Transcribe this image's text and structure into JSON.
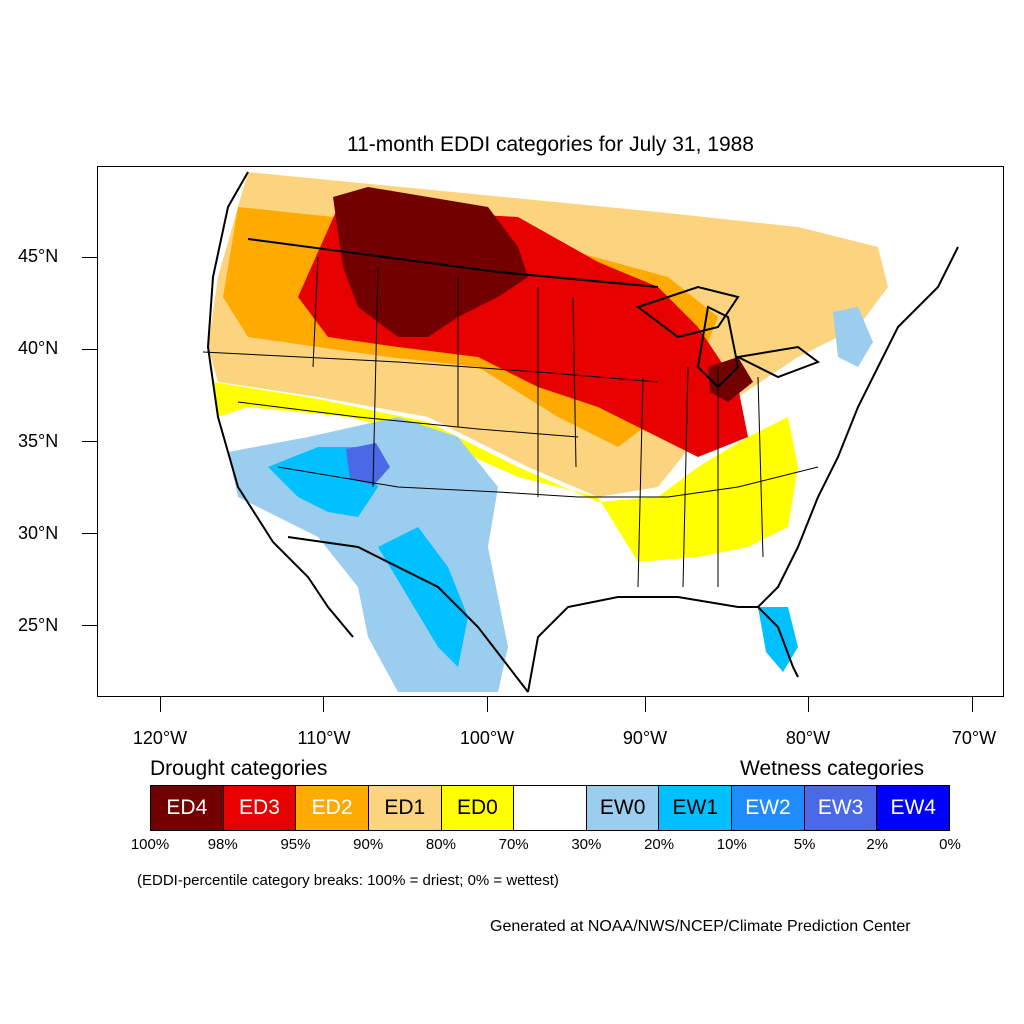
{
  "title": "11-month EDDI categories for July 31, 1988",
  "map": {
    "lat_ticks": [
      "45°N",
      "40°N",
      "35°N",
      "30°N",
      "25°N"
    ],
    "lon_ticks": [
      "120°W",
      "110°W",
      "100°W",
      "90°W",
      "80°W",
      "70°W"
    ],
    "colors": {
      "ED4": "#730000",
      "ED3": "#e60000",
      "ED2": "#ffaa00",
      "ED1": "#fcd37f",
      "ED0": "#ffff00",
      "neutral": "#ffffff",
      "EW0": "#9bcdee",
      "EW1": "#00c0ff",
      "EW2": "#1e8cff",
      "EW3": "#4b69e6",
      "EW4": "#0000ff"
    }
  },
  "legend": {
    "drought_heading": "Drought categories",
    "wetness_heading": "Wetness categories",
    "categories": [
      {
        "label": "ED4",
        "color": "#730000",
        "text_color": "#ffffff"
      },
      {
        "label": "ED3",
        "color": "#e60000",
        "text_color": "#ffffff"
      },
      {
        "label": "ED2",
        "color": "#ffaa00",
        "text_color": "#ffffff"
      },
      {
        "label": "ED1",
        "color": "#fcd37f",
        "text_color": "#000000"
      },
      {
        "label": "ED0",
        "color": "#ffff00",
        "text_color": "#000000"
      },
      {
        "label": "",
        "color": "#ffffff",
        "text_color": "#000000"
      },
      {
        "label": "EW0",
        "color": "#9bcdee",
        "text_color": "#000000"
      },
      {
        "label": "EW1",
        "color": "#00c0ff",
        "text_color": "#000000"
      },
      {
        "label": "EW2",
        "color": "#1e8cff",
        "text_color": "#ffffff"
      },
      {
        "label": "EW3",
        "color": "#4b69e6",
        "text_color": "#ffffff"
      },
      {
        "label": "EW4",
        "color": "#0000ff",
        "text_color": "#ffffff"
      }
    ],
    "breaks": [
      "100%",
      "98%",
      "95%",
      "90%",
      "80%",
      "70%",
      "30%",
      "20%",
      "10%",
      "5%",
      "2%",
      "0%"
    ]
  },
  "note": "(EDDI-percentile category breaks: 100% = driest; 0% = wettest)",
  "credit": "Generated at NOAA/NWS/NCEP/Climate Prediction Center"
}
